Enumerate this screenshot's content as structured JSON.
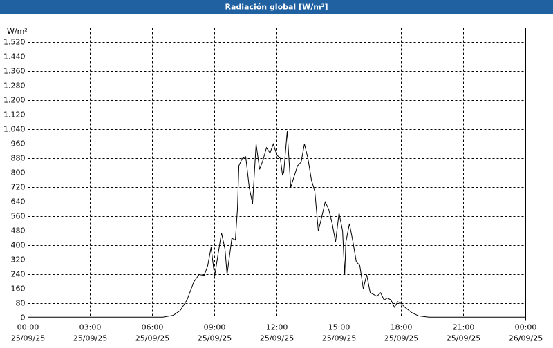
{
  "chart_data": {
    "type": "line",
    "title": "Radiación global [W/m²]",
    "y_label": "W/m²",
    "x": [
      0,
      6.5,
      7.0,
      7.33,
      7.67,
      8.0,
      8.25,
      8.5,
      8.67,
      8.83,
      9.0,
      9.33,
      9.5,
      9.6,
      9.83,
      10.0,
      10.1,
      10.17,
      10.33,
      10.5,
      10.67,
      10.83,
      11.0,
      11.17,
      11.33,
      11.5,
      11.67,
      11.83,
      12.0,
      12.17,
      12.27,
      12.33,
      12.5,
      12.67,
      12.83,
      13.0,
      13.17,
      13.33,
      13.5,
      13.67,
      13.83,
      14.0,
      14.17,
      14.33,
      14.5,
      14.67,
      14.83,
      15.0,
      15.17,
      15.27,
      15.33,
      15.5,
      15.67,
      15.83,
      16.0,
      16.17,
      16.33,
      16.5,
      16.67,
      16.83,
      17.0,
      17.17,
      17.33,
      17.5,
      17.67,
      17.83,
      18.0,
      18.17,
      18.5,
      18.83,
      19.33,
      24
    ],
    "series": [
      {
        "name": "Radiación global",
        "color": "#000000",
        "values": [
          5,
          5,
          15,
          40,
          100,
          200,
          240,
          235,
          290,
          390,
          230,
          470,
          380,
          240,
          440,
          430,
          600,
          840,
          880,
          890,
          720,
          630,
          960,
          820,
          870,
          940,
          910,
          960,
          900,
          880,
          790,
          800,
          1030,
          720,
          780,
          840,
          860,
          960,
          880,
          760,
          700,
          480,
          560,
          640,
          600,
          520,
          420,
          580,
          480,
          240,
          420,
          520,
          420,
          310,
          290,
          160,
          240,
          140,
          130,
          120,
          140,
          100,
          110,
          100,
          60,
          90,
          80,
          60,
          30,
          12,
          5,
          5
        ]
      }
    ],
    "xlim": [
      0,
      24
    ],
    "xticks": [
      {
        "value": 0,
        "label": "00:00",
        "date": "25/09/25"
      },
      {
        "value": 3,
        "label": "03:00",
        "date": "25/09/25"
      },
      {
        "value": 6,
        "label": "06:00",
        "date": "25/09/25"
      },
      {
        "value": 9,
        "label": "09:00",
        "date": "25/09/25"
      },
      {
        "value": 12,
        "label": "12:00",
        "date": "25/09/25"
      },
      {
        "value": 15,
        "label": "15:00",
        "date": "25/09/25"
      },
      {
        "value": 18,
        "label": "18:00",
        "date": "25/09/25"
      },
      {
        "value": 21,
        "label": "21:00",
        "date": "25/09/25"
      },
      {
        "value": 24,
        "label": "00:00",
        "date": "26/09/25"
      }
    ],
    "ylim": [
      0,
      1600
    ],
    "yticks": [
      0,
      80,
      160,
      240,
      320,
      400,
      480,
      560,
      640,
      720,
      800,
      880,
      960,
      {
        "value": 1040,
        "label": "1.040"
      },
      {
        "value": 1120,
        "label": "1.120"
      },
      {
        "value": 1200,
        "label": "1.200"
      },
      {
        "value": 1280,
        "label": "1.280"
      },
      {
        "value": 1360,
        "label": "1.360"
      },
      {
        "value": 1440,
        "label": "1.440"
      },
      {
        "value": 1520,
        "label": "1.520"
      }
    ],
    "grid": true
  }
}
